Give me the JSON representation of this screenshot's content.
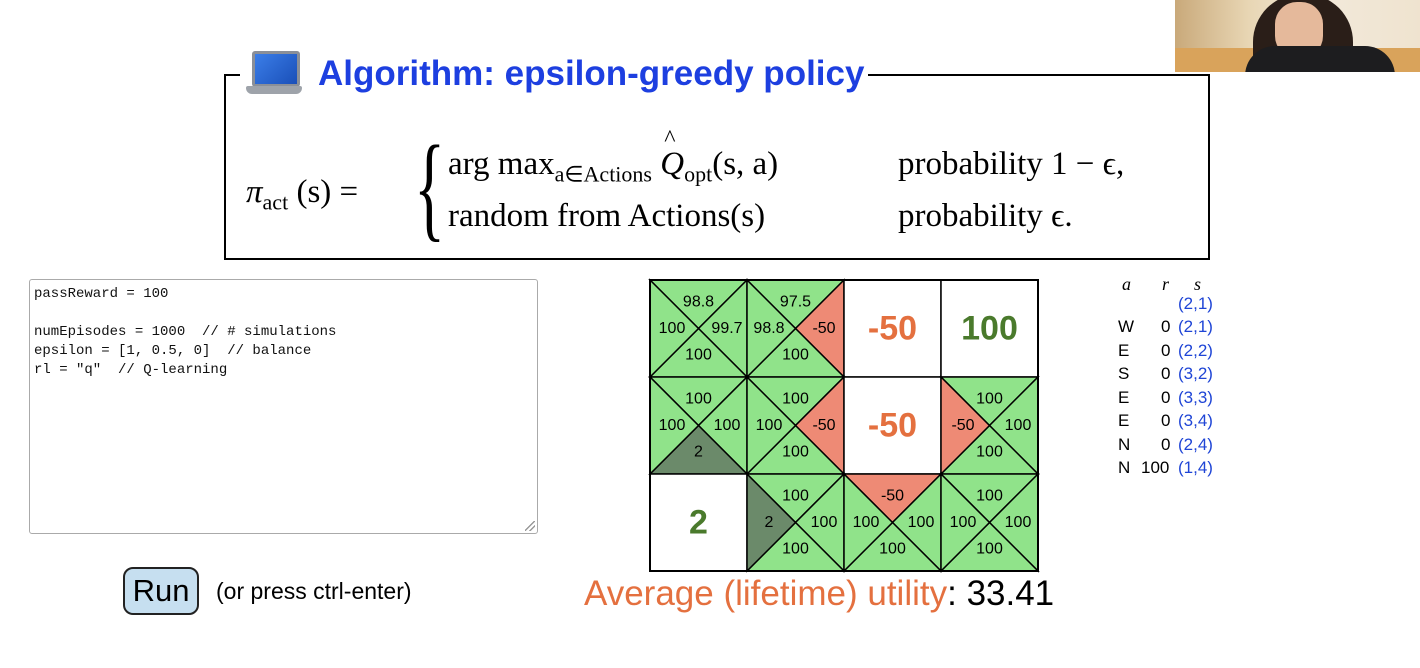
{
  "slide": {
    "algorithm_title": "Algorithm: epsilon-greedy policy",
    "formula": {
      "lhs": "π",
      "lhs_sub": "act",
      "lhs_arg": "(s) =",
      "case1_expr": "arg max",
      "case1_sub": "a∈Actions",
      "case1_q": "Q",
      "case1_q_sub": "opt",
      "case1_args": "(s, a)",
      "case1_prob": "probability 1 − ϵ,",
      "case2_expr": "random from Actions(s)",
      "case2_prob": "probability ϵ."
    },
    "code_lines": [
      "passReward = 100",
      "",
      "numEpisodes = 1000  // # simulations",
      "epsilon = [1, 0.5, 0]  // balance",
      "rl = \"q\"  // Q-learning"
    ],
    "run_button_label": "Run",
    "run_hint": "(or press ctrl-enter)",
    "average_utility_label": "Average (lifetime) utility",
    "average_utility_sep": ":",
    "average_utility_value": "33.41"
  },
  "colors": {
    "title_blue": "#1d3fe0",
    "cell_green": "#90e38a",
    "cell_red": "#ee8a75",
    "cell_dark": "#6b8a6a",
    "value_red": "#e4703f",
    "value_green": "#4a7a2c",
    "state_blue": "#1f45d6"
  },
  "grid": {
    "rows": 3,
    "cols": 4,
    "cells": [
      {
        "r": 0,
        "c": 0,
        "kind": "q",
        "n": "98.8",
        "w": "100",
        "e": "99.7",
        "s": "100",
        "nc": "g",
        "wc": "g",
        "ec": "g",
        "sc": "g"
      },
      {
        "r": 0,
        "c": 1,
        "kind": "q",
        "n": "97.5",
        "w": "98.8",
        "e": "-50",
        "s": "100",
        "nc": "g",
        "wc": "g",
        "ec": "r",
        "sc": "g"
      },
      {
        "r": 0,
        "c": 2,
        "kind": "terminal",
        "value": "-50",
        "tone": "red"
      },
      {
        "r": 0,
        "c": 3,
        "kind": "terminal",
        "value": "100",
        "tone": "green"
      },
      {
        "r": 1,
        "c": 0,
        "kind": "q",
        "n": "100",
        "w": "100",
        "e": "100",
        "s": "2",
        "nc": "g",
        "wc": "g",
        "ec": "g",
        "sc": "d"
      },
      {
        "r": 1,
        "c": 1,
        "kind": "q",
        "n": "100",
        "w": "100",
        "e": "-50",
        "s": "100",
        "nc": "g",
        "wc": "g",
        "ec": "r",
        "sc": "g"
      },
      {
        "r": 1,
        "c": 2,
        "kind": "terminal",
        "value": "-50",
        "tone": "red"
      },
      {
        "r": 1,
        "c": 3,
        "kind": "q",
        "n": "100",
        "w": "-50",
        "e": "100",
        "s": "100",
        "nc": "g",
        "wc": "r",
        "ec": "g",
        "sc": "g"
      },
      {
        "r": 2,
        "c": 0,
        "kind": "terminal",
        "value": "2",
        "tone": "green"
      },
      {
        "r": 2,
        "c": 1,
        "kind": "q",
        "n": "100",
        "w": "2",
        "e": "100",
        "s": "100",
        "nc": "g",
        "wc": "d",
        "ec": "g",
        "sc": "g"
      },
      {
        "r": 2,
        "c": 2,
        "kind": "q",
        "n": "-50",
        "w": "100",
        "e": "100",
        "s": "100",
        "nc": "r",
        "wc": "g",
        "ec": "g",
        "sc": "g"
      },
      {
        "r": 2,
        "c": 3,
        "kind": "q",
        "n": "100",
        "w": "100",
        "e": "100",
        "s": "100",
        "nc": "g",
        "wc": "g",
        "ec": "g",
        "sc": "g"
      }
    ]
  },
  "trace": {
    "headers": {
      "a": "a",
      "r": "r",
      "s": "s"
    },
    "start_state": "(2,1)",
    "steps": [
      {
        "a": "W",
        "r": "0",
        "s": "(2,1)"
      },
      {
        "a": "E",
        "r": "0",
        "s": "(2,2)"
      },
      {
        "a": "S",
        "r": "0",
        "s": "(3,2)"
      },
      {
        "a": "E",
        "r": "0",
        "s": "(3,3)"
      },
      {
        "a": "E",
        "r": "0",
        "s": "(3,4)"
      },
      {
        "a": "N",
        "r": "0",
        "s": "(2,4)"
      },
      {
        "a": "N",
        "r": "100",
        "s": "(1,4)"
      }
    ]
  }
}
